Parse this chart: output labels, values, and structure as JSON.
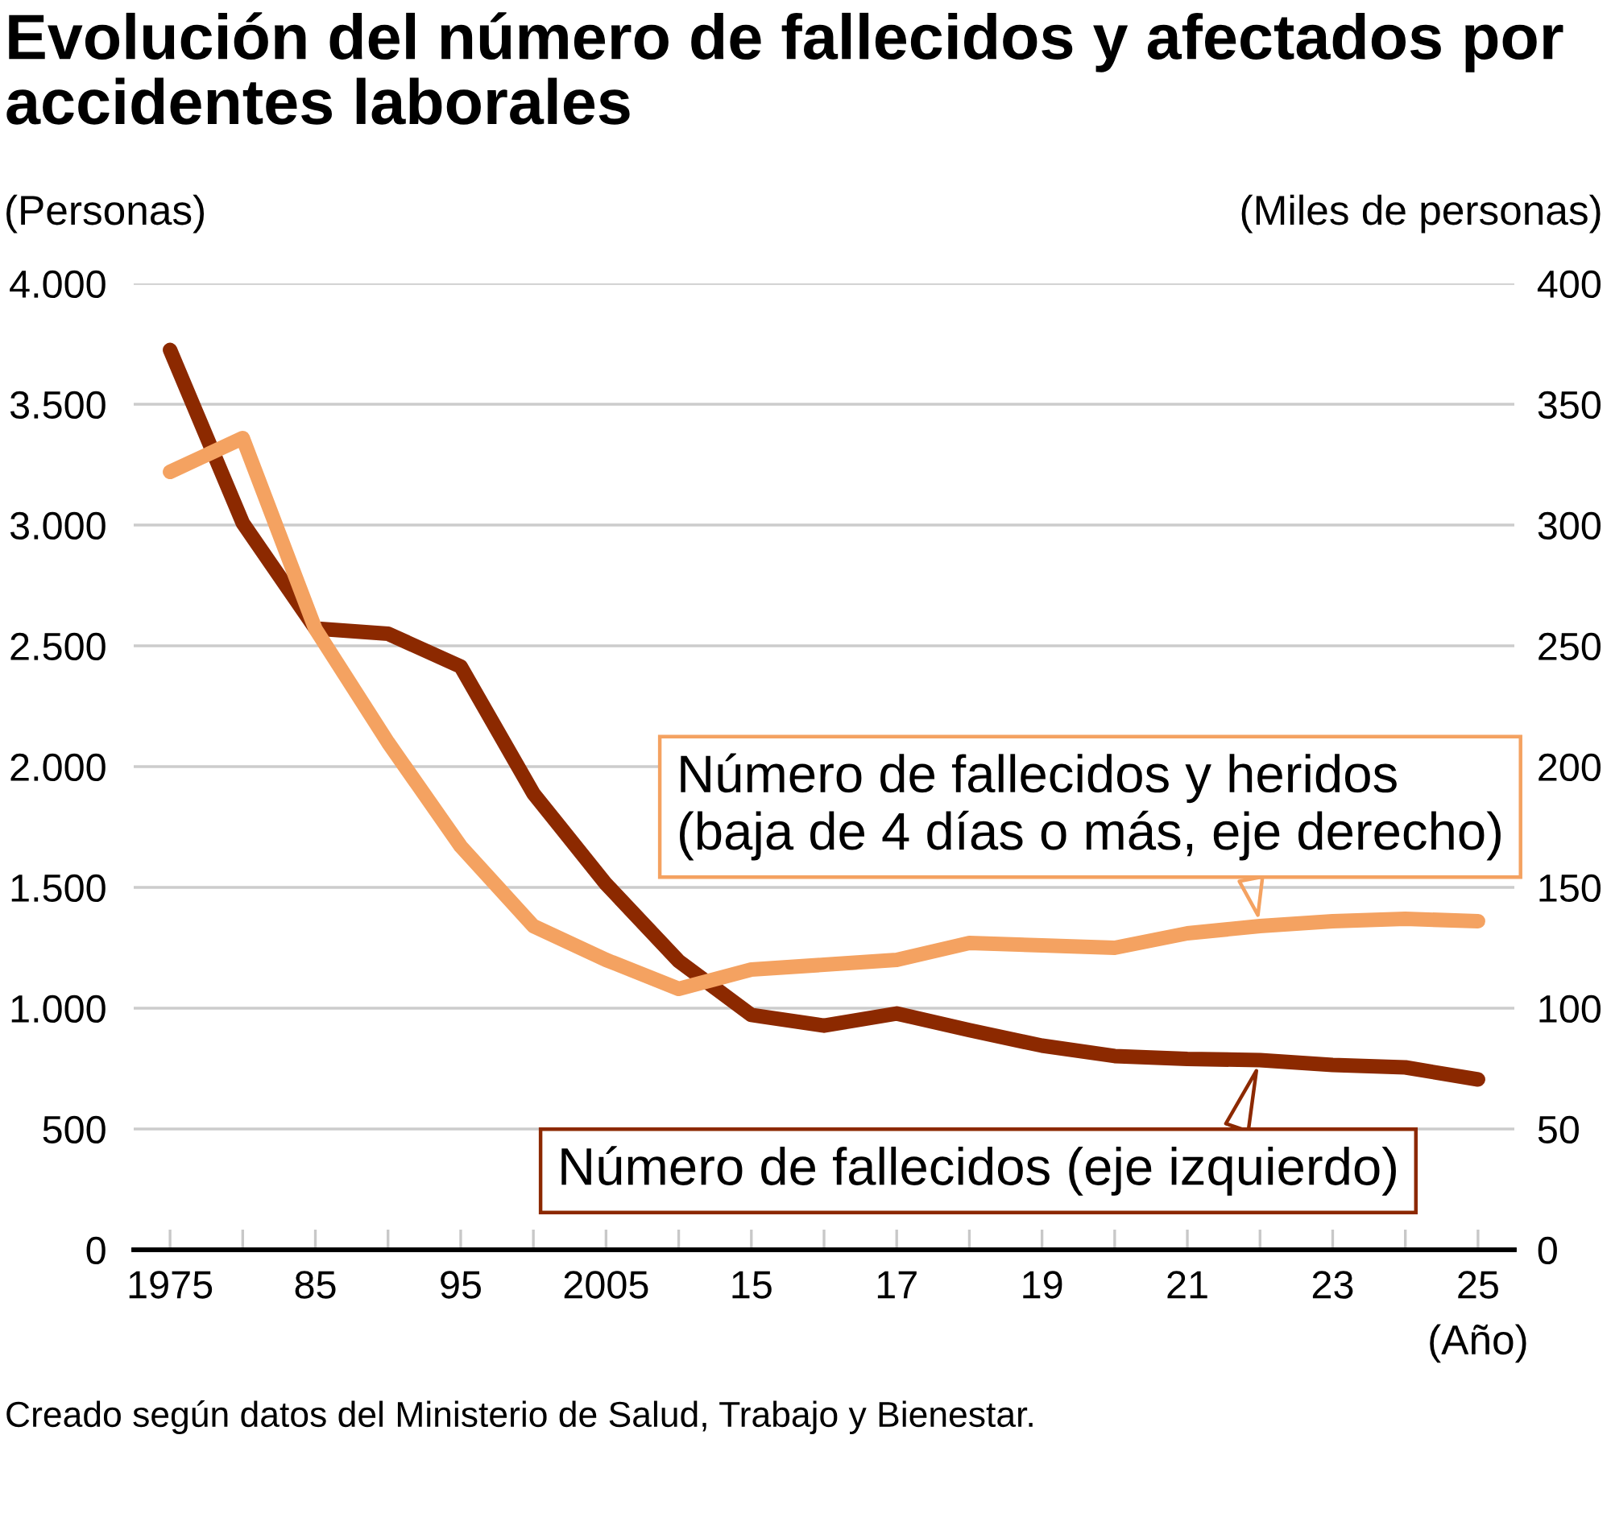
{
  "chart_data": {
    "type": "line",
    "title": "Evolución del número de fallecidos y afectados por accidentes laborales",
    "ylabel": "(Personas)",
    "y2label": "(Miles de personas)",
    "xlabel": "(Año)",
    "annotations": [
      "Creado según datos del Ministerio de Salud, Trabajo y Bienestar."
    ],
    "categories": [
      "1975",
      null,
      "85",
      null,
      "95",
      null,
      "2005",
      null,
      "15",
      null,
      "17",
      null,
      "19",
      null,
      "21",
      null,
      "23",
      null,
      "25"
    ],
    "series": [
      {
        "name": "Número de fallecidos (eje izquierdo)",
        "color": "#8c2900",
        "values": [
          3725,
          3009,
          2572,
          2550,
          2414,
          1889,
          1514,
          1195,
          972,
          928,
          978,
          909,
          845,
          802,
          790,
          785,
          765,
          755,
          705
        ]
      },
      {
        "name": "Número de fallecidos y heridos\n(baja de 4 días o más, eje derecho)",
        "color": "#f4a261",
        "axis": "y2",
        "values": [
          322,
          336,
          257,
          210,
          167,
          134,
          120,
          108,
          116,
          118,
          120,
          127,
          126,
          125,
          131,
          134,
          136,
          137,
          136
        ]
      }
    ],
    "ylim": [
      0,
      4000
    ],
    "yticks": [
      0,
      500,
      {
        "value": 1000,
        "label": "1.000"
      },
      {
        "value": 1500,
        "label": "1.500"
      },
      {
        "value": 2000,
        "label": "2.000"
      },
      {
        "value": 2500,
        "label": "2.500"
      },
      {
        "value": 3000,
        "label": "3.000"
      },
      {
        "value": 3500,
        "label": "3.500"
      },
      {
        "value": 4000,
        "label": "4.000"
      }
    ],
    "y2lim": [
      0,
      400
    ],
    "y2ticks": [
      0,
      50,
      100,
      150,
      200,
      250,
      300,
      350,
      400
    ],
    "grid": "y"
  }
}
